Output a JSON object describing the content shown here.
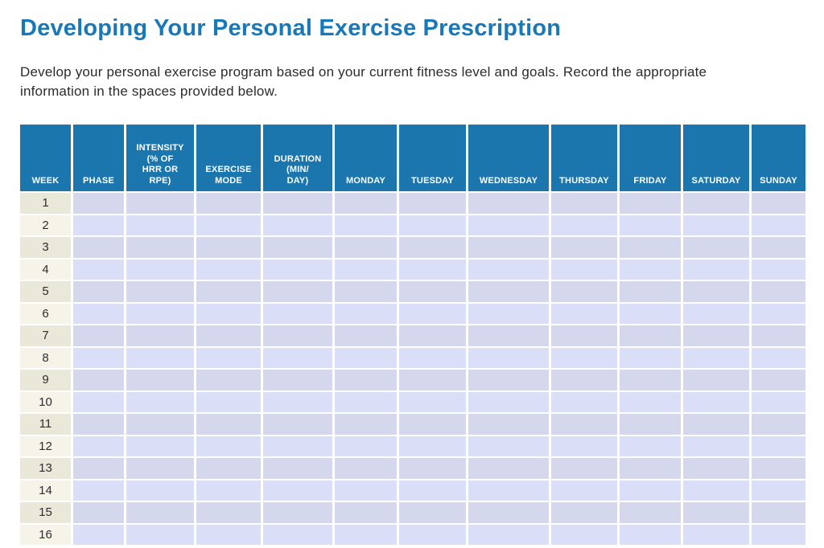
{
  "page": {
    "title": "Developing Your Personal Exercise Prescription",
    "intro": "Develop your personal exercise program based on your current fitness level and goals. Record the appropriate\ninformation in the spaces provided below."
  },
  "colors": {
    "title_blue": "#1878b8",
    "header_blue": "#1b76ad",
    "text_color": "#2b2b2b",
    "week_cell_odd": "#eae8d9",
    "week_cell_even": "#f6f4e9",
    "entry_cell_odd": "#d5d8ec",
    "entry_cell_even": "#dadef6"
  },
  "table": {
    "columns": [
      {
        "id": "week",
        "label": "WEEK"
      },
      {
        "id": "phase",
        "label": "PHASE"
      },
      {
        "id": "intensity",
        "label": "INTENSITY\n(% OF\nHRR OR\nRPE)"
      },
      {
        "id": "exercise-mode",
        "label": "EXERCISE\nMODE"
      },
      {
        "id": "duration",
        "label": "DURATION\n(MIN/\nDAY)"
      },
      {
        "id": "monday",
        "label": "MONDAY"
      },
      {
        "id": "tuesday",
        "label": "TUESDAY"
      },
      {
        "id": "wednesday",
        "label": "WEDNESDAY"
      },
      {
        "id": "thursday",
        "label": "THURSDAY"
      },
      {
        "id": "friday",
        "label": "FRIDAY"
      },
      {
        "id": "saturday",
        "label": "SATURDAY"
      },
      {
        "id": "sunday",
        "label": "SUNDAY"
      }
    ],
    "week_numbers": [
      "1",
      "2",
      "3",
      "4",
      "5",
      "6",
      "7",
      "8",
      "9",
      "10",
      "11",
      "12",
      "13",
      "14",
      "15",
      "16"
    ],
    "entry_cell_value": ""
  }
}
